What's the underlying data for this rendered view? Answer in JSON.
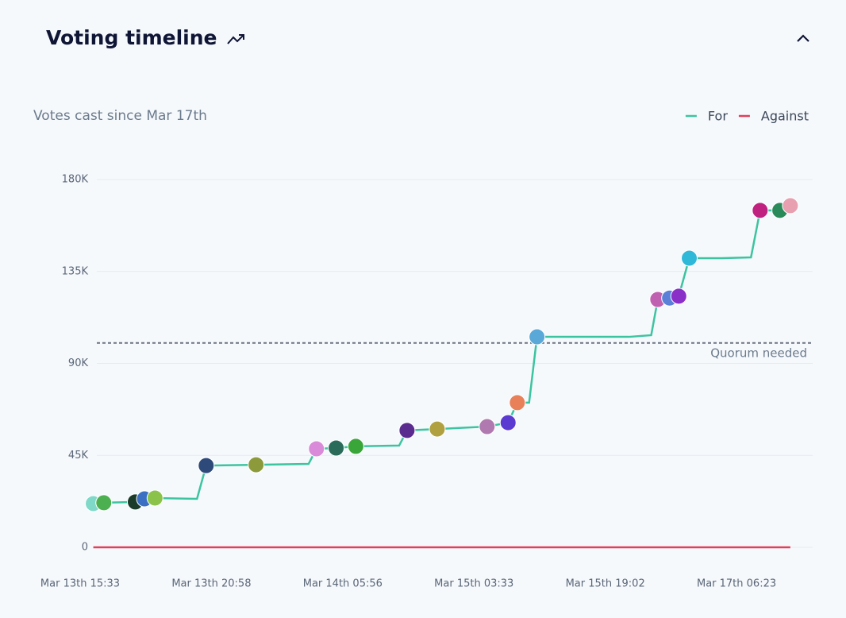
{
  "chart_data": {
    "type": "line",
    "title": "Voting timeline",
    "subtitle": "Votes cast since Mar 17th",
    "xlim": [
      0,
      5.58
    ],
    "xticks": [
      {
        "value": 0,
        "label": "Mar 13th 15:33"
      },
      {
        "value": 1,
        "label": "Mar 13th 20:58"
      },
      {
        "value": 2,
        "label": "Mar 14th 05:56"
      },
      {
        "value": 3,
        "label": "Mar 15th 03:33"
      },
      {
        "value": 4,
        "label": "Mar 15th 19:02"
      },
      {
        "value": 5,
        "label": "Mar 17th 06:23"
      }
    ],
    "ylim": [
      0,
      180000
    ],
    "yticks": [
      0,
      {
        "value": 45000,
        "label": "45K"
      },
      {
        "value": 90000,
        "label": "90K"
      },
      {
        "value": 135000,
        "label": "135K"
      },
      {
        "value": 180000,
        "label": "180K"
      }
    ],
    "grid": true,
    "legend": "top-right",
    "quorum": {
      "value": 100000,
      "label": "Quorum needed"
    },
    "series": [
      {
        "name": "For",
        "color": "#3cc4a0",
        "x": [
          0.1,
          0.18,
          0.42,
          0.49,
          0.57,
          0.89,
          0.96,
          1.34,
          1.74,
          1.8,
          1.95,
          2.1,
          2.43,
          2.49,
          2.72,
          3.1,
          3.26,
          3.33,
          3.42,
          3.48,
          3.74,
          4.18,
          4.35,
          4.4,
          4.49,
          4.56,
          4.64,
          4.89,
          5.11,
          5.18,
          5.33,
          5.41
        ],
        "values": [
          21400,
          21800,
          22200,
          23700,
          24100,
          23700,
          40000,
          40400,
          40800,
          48200,
          48600,
          49400,
          49800,
          57200,
          57900,
          59100,
          61000,
          70800,
          70800,
          103000,
          103000,
          103000,
          103800,
          121300,
          122000,
          122900,
          141500,
          141500,
          141900,
          164900,
          164900,
          167200
        ],
        "marker_colors": [
          "#7fd8c8",
          "#4caf50",
          "#1a3a2a",
          "#3a6fc4",
          "#8bc34a",
          null,
          "#2d4a7a",
          "#8c9a3c",
          null,
          "#d98ad8",
          "#2a6b5a",
          "#3aa63a",
          null,
          "#5b2c8f",
          "#b0a040",
          "#b07ab0",
          "#5a3ad0",
          "#e8805a",
          null,
          "#5aa8d8",
          null,
          null,
          null,
          "#c060b0",
          "#5a80d8",
          "#8a30c8",
          "#30b8d8",
          null,
          null,
          "#c02080",
          "#2a8a5a",
          "#e8a0b0"
        ]
      },
      {
        "name": "Against",
        "color": "#e0405a",
        "x": [
          0.1,
          5.41
        ],
        "values": [
          0,
          0
        ]
      }
    ]
  }
}
